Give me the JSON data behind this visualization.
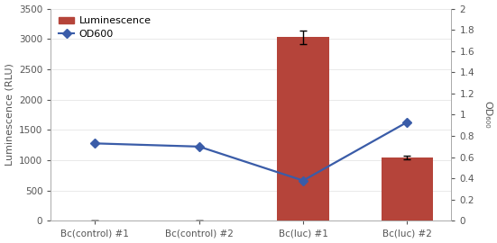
{
  "categories": [
    "Bc(control) #1",
    "Bc(control) #2",
    "Bc(luc) #1",
    "Bc(luc) #2"
  ],
  "bar_values": [
    0,
    0,
    3030,
    1050
  ],
  "bar_errors": [
    0,
    0,
    110,
    30
  ],
  "bar_color": "#b5443a",
  "line_values": [
    0.73,
    0.7,
    0.38,
    0.93
  ],
  "line_color": "#3a5ca8",
  "line_marker": "D",
  "line_marker_size": 5,
  "line_linewidth": 1.6,
  "left_ylabel": "Luminescence (RLU)",
  "right_ylabel": "OD₆₀₀",
  "ylim_left": [
    0,
    3500
  ],
  "ylim_right": [
    0,
    2
  ],
  "left_yticks": [
    0,
    500,
    1000,
    1500,
    2000,
    2500,
    3000,
    3500
  ],
  "right_yticks": [
    0,
    0.2,
    0.4,
    0.6,
    0.8,
    1.0,
    1.2,
    1.4,
    1.6,
    1.8,
    2.0
  ],
  "right_yticklabels": [
    "0",
    "0.2",
    "0.4",
    "0.6",
    "0.8",
    "1",
    "1.2",
    "1.4",
    "1.6",
    "1.8",
    "2"
  ],
  "legend_luminescence": "Luminescence",
  "legend_od600": "OD600",
  "bg_color": "#ffffff",
  "plot_bg_color": "#ffffff",
  "fig_width": 5.51,
  "fig_height": 2.7,
  "dpi": 100,
  "spine_color": "#aaaaaa",
  "tick_color": "#555555",
  "grid_color": "#e0e0e0"
}
